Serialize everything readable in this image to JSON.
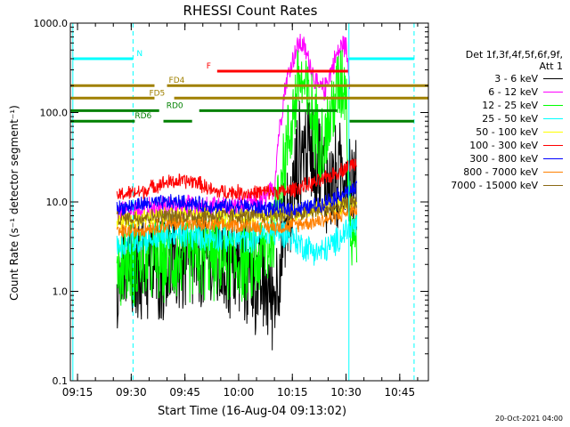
{
  "chart_data": {
    "type": "line",
    "title": "RHESSI Count Rates",
    "xlabel": "Start Time (16-Aug-04 09:13:02)",
    "ylabel": "Count Rate (s⁻¹ detector segment⁻¹)",
    "y_scale": "log",
    "ylim": [
      0.1,
      1000
    ],
    "y_ticks": [
      "0.1",
      "1.0",
      "10.0",
      "100.0",
      "1000.0"
    ],
    "x_domain_minutes": [
      0,
      100
    ],
    "x_ticks": [
      {
        "label": "09:15",
        "minute": 2
      },
      {
        "label": "09:30",
        "minute": 17
      },
      {
        "label": "09:45",
        "minute": 32
      },
      {
        "label": "10:00",
        "minute": 47
      },
      {
        "label": "10:15",
        "minute": 62
      },
      {
        "label": "10:30",
        "minute": 77
      },
      {
        "label": "10:45",
        "minute": 92
      }
    ],
    "grid": false,
    "legend_position": "right",
    "legend_header": [
      "Det 1f,3f,4f,5f,6f,9f,",
      "Att 1"
    ],
    "series": [
      {
        "name": "3 - 6 keV",
        "color": "#000000",
        "noise": 0.7,
        "x": [
          13,
          20,
          30,
          40,
          48,
          52,
          55,
          57,
          60,
          62,
          64,
          67,
          70,
          72,
          75,
          77,
          80
        ],
        "values": [
          1.4,
          1.8,
          2.0,
          2.1,
          1.7,
          1.3,
          1.0,
          0.9,
          5,
          10,
          35,
          45,
          25,
          15,
          18,
          27,
          11
        ]
      },
      {
        "name": "6 - 12 keV",
        "color": "#ff00ff",
        "noise": 0.15,
        "x": [
          13,
          20,
          30,
          40,
          48,
          52,
          55,
          57,
          58,
          60,
          62,
          63,
          64,
          65,
          67,
          69,
          71,
          72,
          74,
          76,
          77,
          78
        ],
        "values": [
          7.5,
          8.5,
          9.0,
          8.7,
          9.0,
          9.5,
          11,
          15,
          50,
          200,
          380,
          500,
          600,
          560,
          350,
          190,
          180,
          240,
          400,
          580,
          550,
          250
        ]
      },
      {
        "name": "12 - 25 keV",
        "color": "#00ff00",
        "noise": 0.55,
        "x": [
          13,
          20,
          30,
          40,
          48,
          52,
          55,
          57,
          58,
          60,
          62,
          63,
          64,
          65,
          67,
          69,
          71,
          72,
          74,
          76,
          77,
          78,
          80
        ],
        "values": [
          2.0,
          2.2,
          2.3,
          2.4,
          2.2,
          2.2,
          3.0,
          5.0,
          15,
          30,
          90,
          150,
          260,
          200,
          110,
          60,
          45,
          65,
          150,
          230,
          200,
          7,
          4
        ]
      },
      {
        "name": "25 - 50 keV",
        "color": "#00ffff",
        "noise": 0.18,
        "x": [
          13,
          20,
          30,
          40,
          48,
          52,
          55,
          60,
          65,
          67,
          70,
          74,
          77,
          80
        ],
        "values": [
          3.2,
          3.8,
          4.2,
          4.0,
          3.8,
          4.0,
          4.5,
          4.5,
          3.2,
          3.0,
          2.7,
          3.5,
          4.8,
          5.5
        ]
      },
      {
        "name": "50 - 100 keV",
        "color": "#ffff00",
        "noise": 0.12,
        "x": [
          13,
          20,
          30,
          40,
          48,
          55,
          60,
          65,
          70,
          75,
          80
        ],
        "values": [
          6.0,
          6.5,
          7.0,
          7.0,
          7.0,
          7.2,
          7.5,
          8.0,
          8.5,
          9.0,
          10
        ]
      },
      {
        "name": "100 - 300 keV",
        "color": "#ff0000",
        "noise": 0.1,
        "x": [
          13,
          20,
          25,
          30,
          35,
          40,
          45,
          50,
          55,
          60,
          65,
          70,
          75,
          80
        ],
        "values": [
          12,
          13,
          16,
          17,
          17,
          13,
          13,
          12.5,
          13,
          13,
          15,
          17,
          22,
          28
        ]
      },
      {
        "name": "300 - 800 keV",
        "color": "#0000ff",
        "noise": 0.1,
        "x": [
          13,
          20,
          30,
          35,
          40,
          48,
          55,
          60,
          65,
          70,
          75,
          80
        ],
        "values": [
          8.5,
          9.5,
          10,
          9.5,
          9.0,
          9.0,
          8.5,
          8.5,
          8.5,
          9.5,
          12,
          14
        ]
      },
      {
        "name": "800 - 7000 keV",
        "color": "#ff8000",
        "noise": 0.1,
        "x": [
          13,
          20,
          30,
          40,
          48,
          55,
          60,
          65,
          70,
          75,
          80
        ],
        "values": [
          4.5,
          5.0,
          5.8,
          5.5,
          5.5,
          5.3,
          5.3,
          5.8,
          6.2,
          7.0,
          8.5
        ]
      },
      {
        "name": "7000 - 15000 keV",
        "color": "#8b6914",
        "noise": 0.1,
        "x": [
          13,
          20,
          30,
          40,
          48,
          55,
          60,
          65,
          70,
          75,
          80
        ],
        "values": [
          6.5,
          6.8,
          7.0,
          7.0,
          7.0,
          7.0,
          7.2,
          7.5,
          8.0,
          9.0,
          10
        ]
      }
    ],
    "vertical_lines": [
      {
        "minute": 0.7,
        "style": "solid",
        "color": "#00ffff"
      },
      {
        "minute": 17.5,
        "style": "dashed",
        "color": "#00ffff"
      },
      {
        "minute": 77.8,
        "style": "solid",
        "color": "#00ffff"
      },
      {
        "minute": 96.0,
        "style": "dashed",
        "color": "#00ffff"
      }
    ],
    "flag_bars": [
      {
        "label": "N",
        "color": "#00ffff",
        "y": 400,
        "segments": [
          [
            0.7,
            17.5
          ],
          [
            77.8,
            96.0
          ]
        ],
        "label_minute": 18.5
      },
      {
        "label": "F",
        "color": "#ff0000",
        "y": 290,
        "segments": [
          [
            41.0,
            77.5
          ]
        ],
        "label_minute": 38.0
      },
      {
        "label": "FD4",
        "color": "#a08000",
        "y": 200,
        "segments": [
          [
            0,
            23.5
          ],
          [
            27,
            100
          ]
        ],
        "label_minute": 27.5
      },
      {
        "label": "FD5",
        "color": "#a08000",
        "y": 145,
        "segments": [
          [
            0,
            23.5
          ],
          [
            29,
            100
          ]
        ],
        "label_minute": 22.0
      },
      {
        "label": "RD0",
        "color": "#008000",
        "y": 105,
        "segments": [
          [
            0,
            24.8
          ],
          [
            36,
            74.5
          ]
        ],
        "label_minute": 26.8
      },
      {
        "label": "RD6",
        "color": "#008000",
        "y": 80,
        "segments": [
          [
            0,
            18.0
          ],
          [
            26,
            34.0
          ],
          [
            78.0,
            96.0
          ]
        ],
        "label_minute": 18.0
      }
    ]
  },
  "footer": {
    "date_stamp": "20-Oct-2021 04:00"
  }
}
